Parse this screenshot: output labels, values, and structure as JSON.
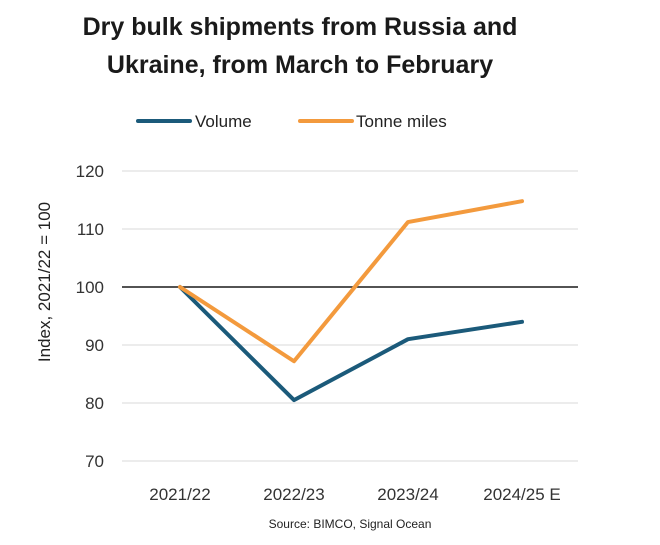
{
  "chart_data": {
    "type": "line",
    "title_line1": "Dry bulk shipments from Russia and",
    "title_line2": "Ukraine, from March to February",
    "ylabel": "Index, 2021/22 = 100",
    "xlabel": "",
    "categories": [
      "2021/22",
      "2022/23",
      "2023/24",
      "2024/25 E"
    ],
    "ylim": [
      70,
      120
    ],
    "yticks": [
      70,
      80,
      90,
      100,
      110,
      120
    ],
    "reference_line": 100,
    "grid": true,
    "legend_position": "top-center",
    "series": [
      {
        "name": "Volume",
        "color": "#1b5a7a",
        "values": [
          100,
          80.5,
          91,
          94
        ]
      },
      {
        "name": "Tonne miles",
        "color": "#f39a3d",
        "values": [
          100,
          87.2,
          111.2,
          114.8
        ]
      }
    ],
    "source": "Source: BIMCO, Signal Ocean"
  }
}
